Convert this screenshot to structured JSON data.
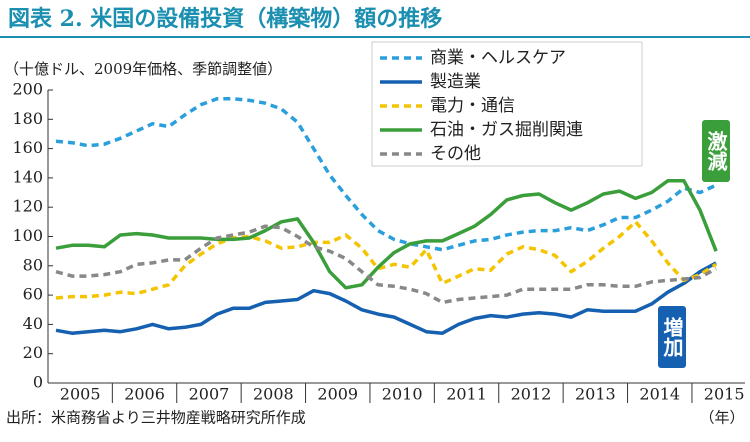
{
  "chart_data": {
    "type": "line",
    "title": "図表 2.  米国の設備投資（構築物）額の推移",
    "subtitle": "（十億ドル、2009年価格、季節調整値）",
    "source": "出所：米商務省より三井物産戦略研究所作成",
    "x_unit_label": "（年）",
    "annotations": [
      "激減",
      "増加"
    ],
    "categories": [
      null,
      "2005",
      null,
      null,
      null,
      "2006",
      null,
      null,
      null,
      "2007",
      null,
      null,
      null,
      "2008",
      null,
      null,
      null,
      "2009",
      null,
      null,
      null,
      "2010",
      null,
      null,
      null,
      "2011",
      null,
      null,
      null,
      "2012",
      null,
      null,
      null,
      "2013",
      null,
      null,
      null,
      "2014",
      null,
      null,
      null,
      "2015"
    ],
    "ylim": [
      0,
      200
    ],
    "yticks": [
      0,
      20,
      40,
      60,
      80,
      100,
      120,
      140,
      160,
      180,
      200
    ],
    "grid": false,
    "series": [
      {
        "name": "商業・ヘルスケア",
        "color": "#2a9fdc",
        "dashed": true,
        "values": [
          165,
          164,
          162,
          163,
          167,
          172,
          177,
          175,
          183,
          190,
          194,
          194,
          193,
          191,
          187,
          178,
          160,
          142,
          128,
          115,
          104,
          98,
          95,
          93,
          91,
          94,
          97,
          98,
          101,
          103,
          104,
          104,
          106,
          104,
          108,
          113,
          113,
          118,
          124,
          133,
          130,
          135
        ]
      },
      {
        "name": "製造業",
        "color": "#1560b0",
        "dashed": false,
        "values": [
          36,
          34,
          35,
          36,
          35,
          37,
          40,
          37,
          38,
          40,
          47,
          51,
          51,
          55,
          56,
          57,
          63,
          61,
          56,
          50,
          47,
          45,
          40,
          35,
          34,
          40,
          44,
          46,
          45,
          47,
          48,
          47,
          45,
          50,
          49,
          49,
          49,
          54,
          62,
          68,
          76,
          82
        ]
      },
      {
        "name": "電力・通信",
        "color": "#f5c400",
        "dashed": true,
        "values": [
          58,
          59,
          59,
          60,
          62,
          61,
          64,
          67,
          80,
          88,
          95,
          99,
          100,
          97,
          92,
          93,
          96,
          96,
          101,
          92,
          78,
          81,
          79,
          91,
          68,
          73,
          78,
          77,
          88,
          93,
          91,
          87,
          76,
          83,
          92,
          100,
          110,
          97,
          82,
          70,
          74,
          81
        ]
      },
      {
        "name": "石油・ガス掘削関連",
        "color": "#3a9e3a",
        "dashed": false,
        "values": [
          92,
          94,
          94,
          93,
          101,
          102,
          101,
          99,
          99,
          99,
          98,
          98,
          99,
          104,
          110,
          112,
          96,
          76,
          65,
          67,
          79,
          89,
          95,
          97,
          97,
          102,
          107,
          115,
          125,
          128,
          129,
          123,
          118,
          123,
          129,
          131,
          126,
          130,
          138,
          138,
          118,
          90
        ]
      },
      {
        "name": "その他",
        "color": "#888888",
        "dashed": true,
        "values": [
          76,
          73,
          73,
          74,
          76,
          81,
          82,
          84,
          84,
          92,
          99,
          101,
          103,
          107,
          106,
          100,
          93,
          90,
          85,
          76,
          67,
          66,
          64,
          61,
          55,
          57,
          58,
          59,
          60,
          64,
          64,
          64,
          64,
          67,
          67,
          66,
          66,
          69,
          70,
          71,
          72,
          78
        ]
      }
    ]
  }
}
